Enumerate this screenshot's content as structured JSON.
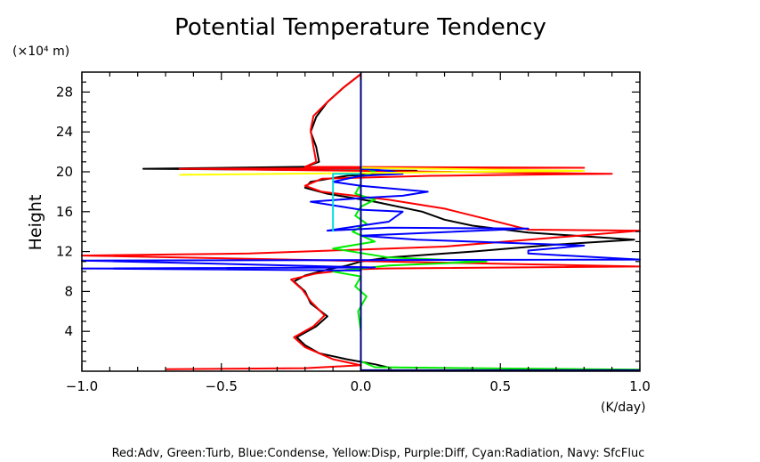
{
  "chart_data": {
    "type": "line",
    "title": "Potential Temperature Tendency",
    "ylabel": "Height",
    "yunits": "(×10⁴ m)",
    "xunits": "(K/day)",
    "xlim": [
      -1.0,
      1.0
    ],
    "ylim": [
      0,
      30
    ],
    "xticks": [
      -1.0,
      -0.5,
      0.0,
      0.5,
      1.0
    ],
    "xtick_labels": [
      "−1.0",
      "−0.5",
      "0.0",
      "0.5",
      "1.0"
    ],
    "yticks": [
      4,
      8,
      12,
      16,
      20,
      24,
      28
    ],
    "ytick_labels": [
      "4",
      "8",
      "12",
      "16",
      "20",
      "24",
      "28"
    ],
    "grid": false,
    "legend_text": "Red:Adv, Green:Turb, Blue:Condense, Yellow:Disp, Purple:Diff, Cyan:Radiation, Navy: SfcFluc",
    "series": [
      {
        "color": "#000000",
        "points": [
          [
            0.11,
            0.3
          ],
          [
            0.05,
            0.7
          ],
          [
            -0.05,
            1.2
          ],
          [
            -0.15,
            1.8
          ],
          [
            -0.2,
            2.6
          ],
          [
            -0.23,
            3.4
          ],
          [
            -0.16,
            4.5
          ],
          [
            -0.12,
            5.5
          ],
          [
            -0.18,
            6.8
          ],
          [
            -0.2,
            8.0
          ],
          [
            -0.24,
            9.0
          ],
          [
            -0.2,
            9.6
          ],
          [
            -0.12,
            10.2
          ],
          [
            -0.05,
            10.6
          ],
          [
            0.0,
            11.0
          ],
          [
            0.1,
            11.4
          ],
          [
            0.4,
            12.0
          ],
          [
            0.7,
            12.7
          ],
          [
            0.98,
            13.2
          ],
          [
            0.6,
            13.9
          ],
          [
            0.4,
            14.6
          ],
          [
            0.3,
            15.2
          ],
          [
            0.22,
            16.0
          ],
          [
            0.05,
            17.0
          ],
          [
            -0.12,
            17.8
          ],
          [
            -0.2,
            18.4
          ],
          [
            -0.18,
            19.0
          ],
          [
            -0.05,
            19.6
          ],
          [
            0.2,
            20.1
          ],
          [
            -0.78,
            20.3
          ],
          [
            -0.2,
            20.5
          ],
          [
            -0.15,
            21.0
          ],
          [
            -0.16,
            22.5
          ],
          [
            -0.18,
            24.0
          ],
          [
            -0.16,
            25.5
          ],
          [
            -0.12,
            27.0
          ],
          [
            -0.06,
            28.5
          ],
          [
            0.0,
            29.8
          ]
        ]
      },
      {
        "color": "#ff0000",
        "points": [
          [
            -0.7,
            0.2
          ],
          [
            -0.2,
            0.3
          ],
          [
            0.0,
            0.6
          ],
          [
            -0.1,
            1.2
          ],
          [
            -0.2,
            2.4
          ],
          [
            -0.24,
            3.4
          ],
          [
            -0.17,
            4.5
          ],
          [
            -0.13,
            5.6
          ],
          [
            -0.18,
            7.0
          ],
          [
            -0.21,
            8.2
          ],
          [
            -0.25,
            9.2
          ],
          [
            -0.16,
            9.8
          ],
          [
            -0.04,
            10.2
          ],
          [
            0.08,
            10.3
          ],
          [
            1.0,
            10.5
          ],
          [
            -1.0,
            11.6
          ],
          [
            -0.4,
            11.8
          ],
          [
            0.3,
            12.5
          ],
          [
            1.0,
            14.1
          ],
          [
            0.6,
            14.2
          ],
          [
            0.46,
            15.2
          ],
          [
            0.3,
            16.3
          ],
          [
            0.1,
            17.2
          ],
          [
            -0.14,
            18.0
          ],
          [
            -0.2,
            18.6
          ],
          [
            -0.14,
            19.3
          ],
          [
            0.25,
            19.6
          ],
          [
            0.9,
            19.8
          ],
          [
            -0.65,
            20.3
          ],
          [
            0.8,
            20.4
          ],
          [
            -0.2,
            20.5
          ],
          [
            -0.16,
            21.0
          ],
          [
            -0.17,
            22.5
          ],
          [
            -0.18,
            24.2
          ],
          [
            -0.17,
            25.6
          ],
          [
            -0.12,
            27.0
          ],
          [
            -0.06,
            28.5
          ],
          [
            0.0,
            29.8
          ]
        ]
      },
      {
        "color": "#00ee00",
        "points": [
          [
            1.0,
            0.15
          ],
          [
            0.4,
            0.3
          ],
          [
            0.05,
            0.4
          ],
          [
            0.0,
            1.0
          ],
          [
            0.0,
            4.0
          ],
          [
            -0.01,
            6.0
          ],
          [
            0.02,
            7.5
          ],
          [
            -0.02,
            8.5
          ],
          [
            0.0,
            9.5
          ],
          [
            -0.1,
            10.0
          ],
          [
            0.1,
            10.6
          ],
          [
            0.45,
            11.0
          ],
          [
            0.1,
            11.4
          ],
          [
            -0.1,
            12.3
          ],
          [
            0.05,
            13.0
          ],
          [
            -0.03,
            14.0
          ],
          [
            0.02,
            14.8
          ],
          [
            -0.02,
            15.6
          ],
          [
            0.0,
            16.5
          ],
          [
            0.05,
            17.2
          ],
          [
            -0.02,
            17.8
          ],
          [
            0.0,
            18.8
          ],
          [
            0.0,
            19.5
          ],
          [
            0.05,
            20.0
          ],
          [
            0.0,
            20.5
          ],
          [
            0.0,
            29.0
          ]
        ]
      },
      {
        "color": "#0000ff",
        "points": [
          [
            0.0,
            0.3
          ],
          [
            0.0,
            9.0
          ],
          [
            0.0,
            10.1
          ],
          [
            -1.0,
            10.3
          ],
          [
            0.05,
            10.4
          ],
          [
            -1.0,
            11.1
          ],
          [
            1.0,
            11.2
          ],
          [
            0.6,
            11.8
          ],
          [
            0.6,
            12.1
          ],
          [
            0.8,
            12.6
          ],
          [
            0.2,
            13.2
          ],
          [
            0.0,
            13.6
          ],
          [
            0.6,
            14.3
          ],
          [
            0.1,
            14.4
          ],
          [
            -0.12,
            14.1
          ],
          [
            0.0,
            14.6
          ],
          [
            0.1,
            15.0
          ],
          [
            0.15,
            16.0
          ],
          [
            0.0,
            16.2
          ],
          [
            -0.18,
            17.0
          ],
          [
            0.02,
            17.4
          ],
          [
            0.15,
            17.6
          ],
          [
            0.24,
            18.0
          ],
          [
            0.0,
            18.6
          ],
          [
            -0.1,
            19.0
          ],
          [
            0.0,
            19.6
          ],
          [
            0.15,
            19.8
          ],
          [
            0.1,
            20.1
          ],
          [
            0.0,
            20.3
          ]
        ]
      },
      {
        "color": "#ffff00",
        "points": [
          [
            -0.65,
            19.7
          ],
          [
            0.8,
            20.1
          ],
          [
            0.0,
            20.4
          ],
          [
            0.0,
            21.0
          ]
        ]
      },
      {
        "color": "#00dddd",
        "points": [
          [
            -0.1,
            14.0
          ],
          [
            -0.1,
            19.8
          ],
          [
            0.0,
            19.8
          ]
        ]
      },
      {
        "color": "#000080",
        "points": [
          [
            0.0,
            0.1
          ],
          [
            1.0,
            0.1
          ]
        ]
      }
    ]
  }
}
